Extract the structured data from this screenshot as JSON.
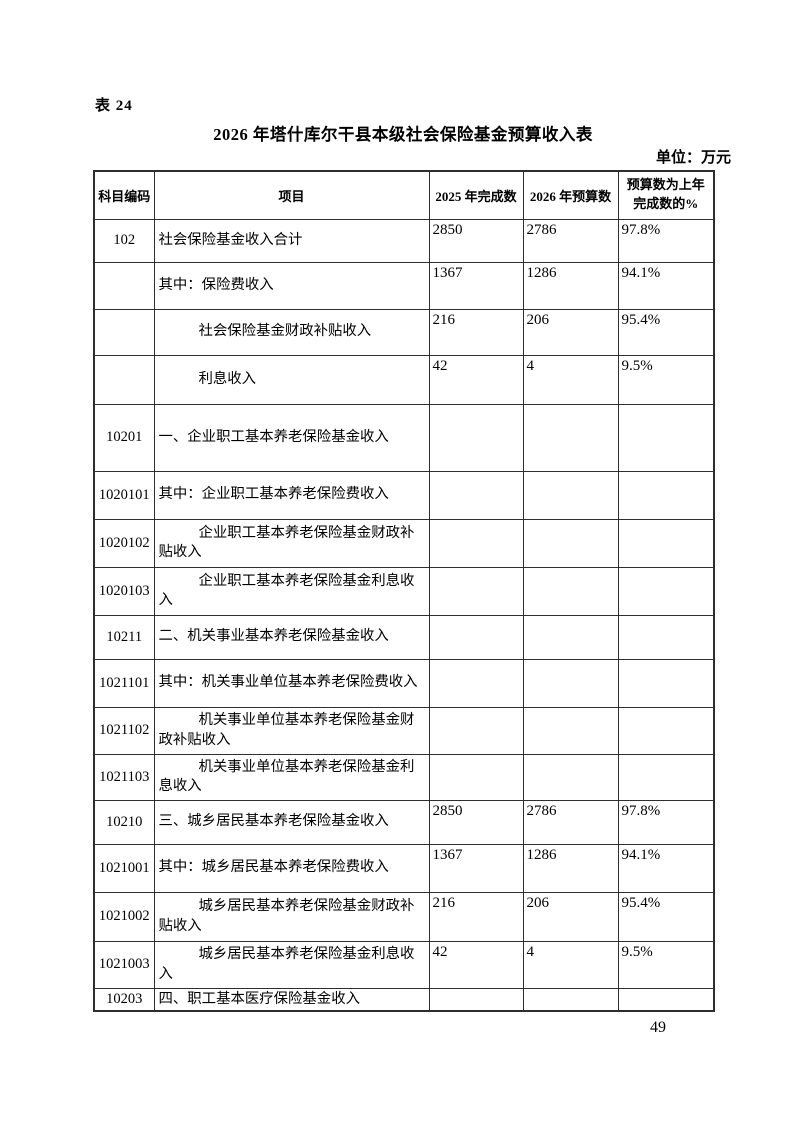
{
  "page": {
    "table_label": "表 24",
    "title": "2026 年塔什库尔干县本级社会保险基金预算收入表",
    "unit_label": "单位：万元",
    "page_number": "49"
  },
  "table": {
    "columns": [
      {
        "key": "code",
        "label": "科目编码"
      },
      {
        "key": "item",
        "label": "项目"
      },
      {
        "key": "y2025",
        "label": "2025 年完成数"
      },
      {
        "key": "y2026",
        "label": "2026 年预算数"
      },
      {
        "key": "pct",
        "label": "预算数为上年\n完成数的%"
      }
    ],
    "rows": [
      {
        "code": "102",
        "item": "社会保险基金收入合计",
        "v2025": "2850",
        "v2026": "2786",
        "pct": "97.8%",
        "indent": false
      },
      {
        "code": "",
        "item": "其中：保险费收入",
        "v2025": "1367",
        "v2026": "1286",
        "pct": "94.1%",
        "indent": false
      },
      {
        "code": "",
        "item": "社会保险基金财政补贴收入",
        "v2025": "216",
        "v2026": "206",
        "pct": "95.4%",
        "indent": true
      },
      {
        "code": "",
        "item": "利息收入",
        "v2025": "42",
        "v2026": "4",
        "pct": "9.5%",
        "indent": true
      },
      {
        "code": "10201",
        "item": "一、企业职工基本养老保险基金收入",
        "v2025": "",
        "v2026": "",
        "pct": "",
        "indent": false
      },
      {
        "code": "1020101",
        "item": "其中：企业职工基本养老保险费收入",
        "v2025": "",
        "v2026": "",
        "pct": "",
        "indent": false
      },
      {
        "code": "1020102",
        "item": "企业职工基本养老保险基金财政补贴收入",
        "v2025": "",
        "v2026": "",
        "pct": "",
        "indent": true
      },
      {
        "code": "1020103",
        "item": "企业职工基本养老保险基金利息收入",
        "v2025": "",
        "v2026": "",
        "pct": "",
        "indent": true
      },
      {
        "code": "10211",
        "item": "二、机关事业基本养老保险基金收入",
        "v2025": "",
        "v2026": "",
        "pct": "",
        "indent": false
      },
      {
        "code": "1021101",
        "item": "其中：机关事业单位基本养老保险费收入",
        "v2025": "",
        "v2026": "",
        "pct": "",
        "indent": false
      },
      {
        "code": "1021102",
        "item": "机关事业单位基本养老保险基金财政补贴收入",
        "v2025": "",
        "v2026": "",
        "pct": "",
        "indent": true
      },
      {
        "code": "1021103",
        "item": "机关事业单位基本养老保险基金利息收入",
        "v2025": "",
        "v2026": "",
        "pct": "",
        "indent": true
      },
      {
        "code": "10210",
        "item": "三、城乡居民基本养老保险基金收入",
        "v2025": "2850",
        "v2026": "2786",
        "pct": "97.8%",
        "indent": false
      },
      {
        "code": "1021001",
        "item": "其中：城乡居民基本养老保险费收入",
        "v2025": "1367",
        "v2026": "1286",
        "pct": "94.1%",
        "indent": false
      },
      {
        "code": "1021002",
        "item": "城乡居民基本养老保险基金财政补贴收入",
        "v2025": "216",
        "v2026": "206",
        "pct": "95.4%",
        "indent": true
      },
      {
        "code": "1021003",
        "item": "城乡居民基本养老保险基金利息收入",
        "v2025": "42",
        "v2026": "4",
        "pct": "9.5%",
        "indent": true
      },
      {
        "code": "10203",
        "item": "四、职工基本医疗保险基金收入",
        "v2025": "",
        "v2026": "",
        "pct": "",
        "indent": false
      }
    ]
  }
}
